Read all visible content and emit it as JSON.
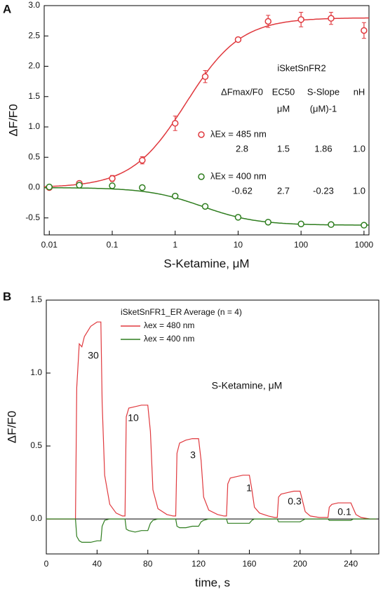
{
  "chart_data": [
    {
      "type": "scatter",
      "panel": "A",
      "x_label": "S-Ketamine, μM",
      "y_label": "ΔF/F0",
      "label": "iSketSnFR2",
      "x_log": true,
      "xlim": [
        0.0083,
        1200
      ],
      "xticks": [
        0.01,
        0.1,
        1,
        10,
        100,
        1000
      ],
      "ylim": [
        -0.78,
        3.0
      ],
      "yticks": [
        -0.5,
        {
          "value": 0,
          "label": "0.0"
        },
        0.5,
        {
          "value": 1,
          "label": "1.0"
        },
        1.5,
        {
          "value": 2,
          "label": "2.0"
        },
        2.5,
        {
          "value": 3,
          "label": "3.0"
        }
      ],
      "x": [
        0.01,
        0.03,
        0.1,
        0.3,
        1,
        3,
        10,
        30,
        100,
        300,
        1000
      ],
      "fit_columns": [
        "ΔFmax/F0",
        "EC50",
        "S-Slope",
        "nH"
      ],
      "fit_units": [
        "μM",
        "(μM)-1"
      ],
      "series": [
        {
          "name": "λEx = 485 nm",
          "color": "#e0393e",
          "values": [
            0.0,
            0.07,
            0.15,
            0.45,
            1.06,
            1.83,
            2.44,
            2.74,
            2.77,
            2.79,
            2.59
          ],
          "errors": [
            0.02,
            0.03,
            0.05,
            0.06,
            0.12,
            0.1,
            0.03,
            0.1,
            0.12,
            0.1,
            0.13
          ],
          "fit_values": [
            2.8,
            1.5,
            1.86,
            1.0
          ],
          "fit_value_labels": [
            "2.8",
            "1.5",
            "1.86",
            "1.0"
          ]
        },
        {
          "name": "λEx = 400 nm",
          "color": "#2e7d1e",
          "values": [
            0.01,
            0.04,
            0.03,
            0.0,
            -0.14,
            -0.31,
            -0.49,
            -0.57,
            -0.6,
            -0.61,
            -0.62
          ],
          "errors": [
            0.01,
            0.01,
            0.01,
            0.01,
            0.01,
            0.01,
            0.01,
            0.01,
            0.01,
            0.01,
            0.01
          ],
          "fit_values": [
            -0.62,
            2.7,
            -0.23,
            1.0
          ],
          "fit_value_labels": [
            "-0.62",
            "2.7",
            "-0.23",
            "1.0"
          ]
        }
      ]
    },
    {
      "type": "line",
      "panel": "B",
      "x_label": "time, s",
      "y_label": "ΔF/F0",
      "legend_title": "iSketSnFR1_ER Average (n = 4)",
      "zero_line": true,
      "xlim": [
        0,
        262
      ],
      "xticks": [
        0,
        40,
        80,
        120,
        160,
        200,
        240
      ],
      "ylim": [
        -0.24,
        1.5
      ],
      "yticks": [
        {
          "value": 0,
          "label": "0.0"
        },
        0.5,
        {
          "value": 1,
          "label": "1.0"
        },
        1.5
      ],
      "annotations": [
        "30",
        "10",
        "3",
        "1",
        "0.3",
        "0.1",
        "S-Ketamine, μM"
      ],
      "x": [
        0,
        10,
        20,
        23,
        24,
        26,
        28,
        30,
        35,
        40,
        43,
        44,
        46,
        50,
        55,
        60,
        62,
        63,
        65,
        70,
        75,
        80,
        82,
        84,
        88,
        95,
        100,
        102,
        103,
        105,
        110,
        115,
        120,
        122,
        124,
        128,
        135,
        140,
        142,
        143,
        145,
        150,
        155,
        160,
        162,
        164,
        168,
        175,
        180,
        182,
        183,
        185,
        190,
        195,
        200,
        202,
        204,
        208,
        215,
        220,
        222,
        223,
        225,
        230,
        235,
        240,
        242,
        244,
        248,
        255,
        260
      ],
      "series": [
        {
          "name": "λex = 480 nm",
          "color": "#e0393e",
          "values": [
            0,
            0,
            0,
            0,
            0.9,
            1.2,
            1.18,
            1.25,
            1.32,
            1.35,
            1.35,
            0.8,
            0.3,
            0.1,
            0.04,
            0.02,
            0.02,
            0.7,
            0.76,
            0.77,
            0.78,
            0.78,
            0.6,
            0.2,
            0.07,
            0.03,
            0.02,
            0.02,
            0.45,
            0.52,
            0.54,
            0.55,
            0.55,
            0.4,
            0.15,
            0.06,
            0.03,
            0.02,
            0.02,
            0.24,
            0.28,
            0.29,
            0.3,
            0.3,
            0.2,
            0.08,
            0.04,
            0.02,
            0.01,
            0.01,
            0.15,
            0.17,
            0.18,
            0.19,
            0.19,
            0.12,
            0.05,
            0.02,
            0.01,
            0.01,
            0.01,
            0.08,
            0.1,
            0.11,
            0.11,
            0.11,
            0.07,
            0.03,
            0.01,
            0,
            0
          ]
        },
        {
          "name": "λex = 400 nm",
          "color": "#2e7d1e",
          "values": [
            0,
            0,
            0,
            0,
            -0.12,
            -0.15,
            -0.16,
            -0.16,
            -0.16,
            -0.15,
            -0.15,
            -0.05,
            -0.01,
            0,
            0,
            0,
            0,
            -0.07,
            -0.08,
            -0.09,
            -0.08,
            -0.08,
            -0.03,
            -0.01,
            0,
            0,
            0,
            0,
            -0.05,
            -0.06,
            -0.06,
            -0.05,
            -0.05,
            -0.02,
            -0.01,
            0,
            0,
            0,
            0,
            -0.03,
            -0.03,
            -0.03,
            -0.03,
            -0.03,
            -0.01,
            0,
            0,
            0,
            0,
            0,
            -0.02,
            -0.02,
            -0.02,
            -0.02,
            -0.02,
            -0.01,
            0,
            0,
            0,
            0,
            0,
            -0.01,
            -0.01,
            -0.01,
            -0.01,
            -0.01,
            0,
            0,
            0,
            0,
            0
          ]
        }
      ]
    }
  ]
}
